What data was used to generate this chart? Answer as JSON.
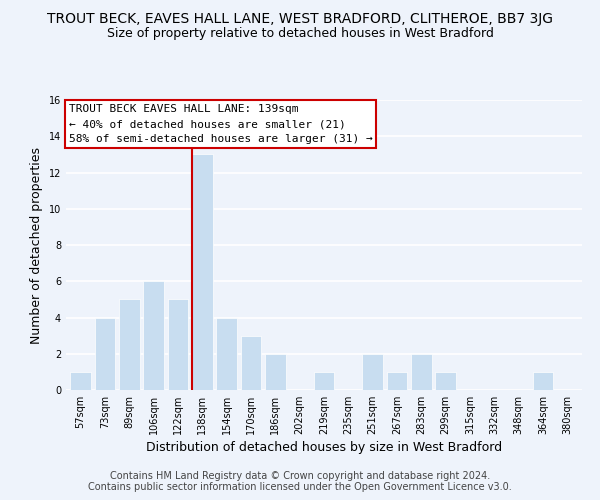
{
  "title": "TROUT BECK, EAVES HALL LANE, WEST BRADFORD, CLITHEROE, BB7 3JG",
  "subtitle": "Size of property relative to detached houses in West Bradford",
  "xlabel": "Distribution of detached houses by size in West Bradford",
  "ylabel": "Number of detached properties",
  "bin_labels": [
    "57sqm",
    "73sqm",
    "89sqm",
    "106sqm",
    "122sqm",
    "138sqm",
    "154sqm",
    "170sqm",
    "186sqm",
    "202sqm",
    "219sqm",
    "235sqm",
    "251sqm",
    "267sqm",
    "283sqm",
    "299sqm",
    "315sqm",
    "332sqm",
    "348sqm",
    "364sqm",
    "380sqm"
  ],
  "bar_heights": [
    1,
    4,
    5,
    6,
    5,
    13,
    4,
    3,
    2,
    0,
    1,
    0,
    2,
    1,
    2,
    1,
    0,
    0,
    0,
    1,
    0
  ],
  "highlight_index": 5,
  "bar_color": "#c8ddf0",
  "highlight_line_color": "#cc0000",
  "ylim": [
    0,
    16
  ],
  "yticks": [
    0,
    2,
    4,
    6,
    8,
    10,
    12,
    14,
    16
  ],
  "annotation_title": "TROUT BECK EAVES HALL LANE: 139sqm",
  "annotation_line1": "← 40% of detached houses are smaller (21)",
  "annotation_line2": "58% of semi-detached houses are larger (31) →",
  "footer1": "Contains HM Land Registry data © Crown copyright and database right 2024.",
  "footer2": "Contains public sector information licensed under the Open Government Licence v3.0.",
  "background_color": "#eef3fb",
  "grid_color": "#ffffff",
  "title_fontsize": 10,
  "subtitle_fontsize": 9,
  "axis_label_fontsize": 9,
  "tick_fontsize": 7,
  "footer_fontsize": 7,
  "annotation_fontsize": 8
}
